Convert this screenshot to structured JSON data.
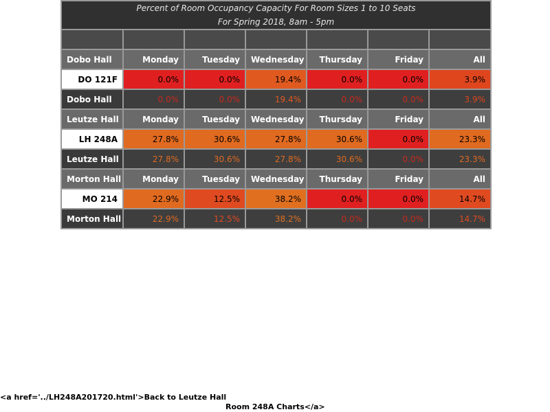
{
  "title": {
    "line1": "Percent of Room Occupancy Capacity For Room Sizes 1 to 10 Seats",
    "line2": "For Spring 2018, 8am - 5pm"
  },
  "colors": {
    "red": "#e02020",
    "orange": "#e06a20",
    "orange_red": "#e04a20",
    "sum_red": "#c83a20",
    "sum_orange": "#e06a20"
  },
  "sections": [
    {
      "hall": "Dobo Hall",
      "days": [
        "Monday",
        "Tuesday",
        "Wednesday",
        "Thursday",
        "Friday",
        "All"
      ],
      "room": "DO 121F",
      "values": [
        "0.0%",
        "0.0%",
        "19.4%",
        "0.0%",
        "0.0%",
        "3.9%"
      ],
      "summary_label": "Dobo Hall",
      "summary_values": [
        "0.0%",
        "0.0%",
        "19.4%",
        "0.0%",
        "0.0%",
        "3.9%"
      ]
    },
    {
      "hall": "Leutze Hall",
      "days": [
        "Monday",
        "Tuesday",
        "Wednesday",
        "Thursday",
        "Friday",
        "All"
      ],
      "room": "LH 248A",
      "values": [
        "27.8%",
        "30.6%",
        "27.8%",
        "30.6%",
        "0.0%",
        "23.3%"
      ],
      "summary_label": "Leutze Hall",
      "summary_values": [
        "27.8%",
        "30.6%",
        "27.8%",
        "30.6%",
        "0.0%",
        "23.3%"
      ]
    },
    {
      "hall": "Morton Hall",
      "days": [
        "Monday",
        "Tuesday",
        "Wednesday",
        "Thursday",
        "Friday",
        "All"
      ],
      "room": "MO 214",
      "values": [
        "22.9%",
        "12.5%",
        "38.2%",
        "0.0%",
        "0.0%",
        "14.7%"
      ],
      "summary_label": "Morton Hall",
      "summary_values": [
        "22.9%",
        "12.5%",
        "38.2%",
        "0.0%",
        "0.0%",
        "14.7%"
      ]
    }
  ],
  "footer": {
    "line1": "<a href='../LH248A201720.html'>Back to Leutze Hall",
    "line2": "Room 248A Charts</a>"
  }
}
